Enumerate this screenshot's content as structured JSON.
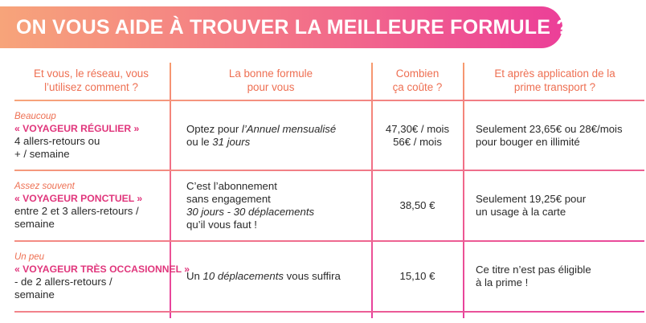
{
  "banner": {
    "title": "ON VOUS AIDE À TROUVER LA MEILLEURE FORMULE ?"
  },
  "table": {
    "headers": [
      [
        "Et vous, le réseau, vous",
        "l’utilisez comment ?"
      ],
      [
        "La bonne formule",
        "pour vous"
      ],
      [
        "Combien",
        "ça coûte ?"
      ],
      [
        "Et après application de la",
        "prime transport ?"
      ]
    ],
    "rows": [
      {
        "frequency": "Beaucoup",
        "category": "« VOYAGEUR RÉGULIER »",
        "usage": [
          "4 allers-retours ou",
          "+ / semaine"
        ],
        "formula_a": "Optez pour ",
        "formula_b": "l’Annuel mensualisé",
        "formula_c": "ou le ",
        "formula_d": "31 jours",
        "price": [
          "47,30€ / mois",
          "56€ / mois"
        ],
        "after": [
          "Seulement 23,65€ ou 28€/mois",
          "pour bouger en illimité"
        ]
      },
      {
        "frequency": "Assez souvent",
        "category": "« VOYAGEUR PONCTUEL »",
        "usage": [
          "entre 2 et 3 allers-retours /",
          "semaine"
        ],
        "formula_a": "C’est l’abonnement",
        "formula_b": "sans engagement",
        "formula_c": "30 jours - 30 déplacements",
        "formula_d": "qu’il vous faut !",
        "price": [
          "38,50 €"
        ],
        "after": [
          "Seulement 19,25€ pour",
          "un usage à la carte"
        ]
      },
      {
        "frequency": "Un peu",
        "category": "« VOYAGEUR TRÈS OCCASIONNEL »",
        "usage": [
          "- de 2 allers-retours /",
          "semaine"
        ],
        "formula_a": "Un ",
        "formula_b": "10 déplacements",
        "formula_c": " vous suffira",
        "price": [
          "15,10 €"
        ],
        "after": [
          "Ce titre n’est pas éligible",
          "à la prime !"
        ]
      }
    ]
  },
  "colors": {
    "banner_start": "#f7a47a",
    "banner_end": "#ec3f98",
    "header_text": "#ee6f52",
    "category_text": "#e0367c",
    "body_text": "#2a2a2a"
  }
}
